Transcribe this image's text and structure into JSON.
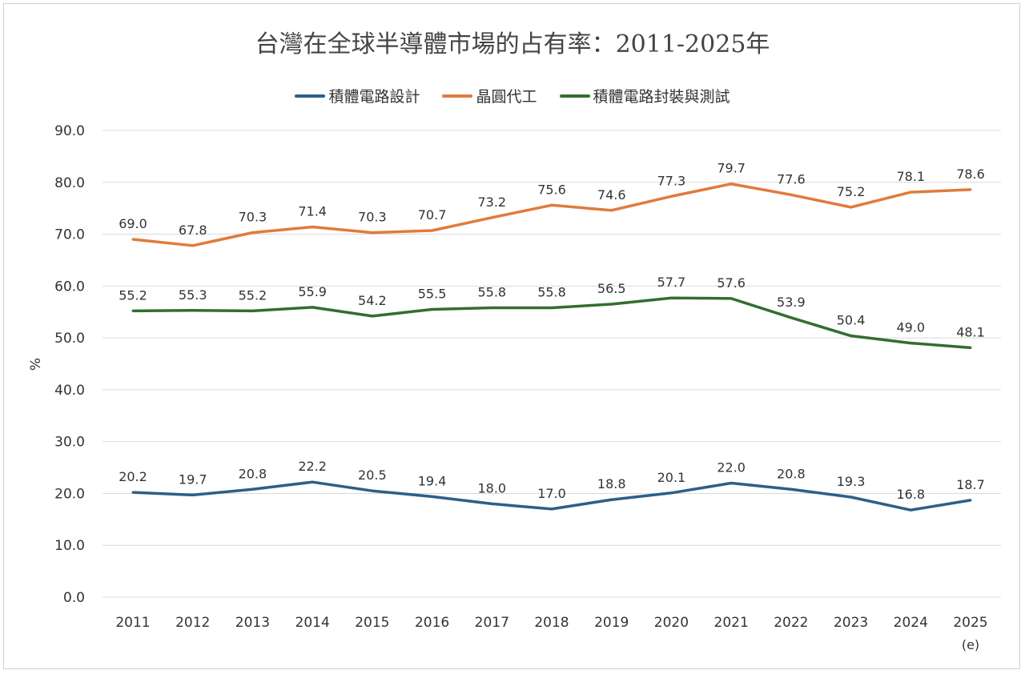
{
  "chart_data": {
    "type": "line",
    "title": "台灣在全球半導體市場的占有率：2011-2025年",
    "ylabel": "%",
    "xlabel": "",
    "categories": [
      "2011",
      "2012",
      "2013",
      "2014",
      "2015",
      "2016",
      "2017",
      "2018",
      "2019",
      "2020",
      "2021",
      "2022",
      "2023",
      "2024",
      "2025"
    ],
    "category_note": {
      "2025": "(e)"
    },
    "ylim": [
      0,
      90
    ],
    "yticks": [
      "0.0",
      "10.0",
      "20.0",
      "30.0",
      "40.0",
      "50.0",
      "60.0",
      "70.0",
      "80.0",
      "90.0"
    ],
    "grid": true,
    "legend_position": "top",
    "series": [
      {
        "name": "積體電路設計",
        "color": "#2e5f87",
        "values": [
          20.2,
          19.7,
          20.8,
          22.2,
          20.5,
          19.4,
          18.0,
          17.0,
          18.8,
          20.1,
          22.0,
          20.8,
          19.3,
          16.8,
          18.7
        ]
      },
      {
        "name": "晶圓代工",
        "color": "#e07b3c",
        "values": [
          69.0,
          67.8,
          70.3,
          71.4,
          70.3,
          70.7,
          73.2,
          75.6,
          74.6,
          77.3,
          79.7,
          77.6,
          75.2,
          78.1,
          78.6
        ]
      },
      {
        "name": "積體電路封裝與測試",
        "color": "#336e2e",
        "values": [
          55.2,
          55.3,
          55.2,
          55.9,
          54.2,
          55.5,
          55.8,
          55.8,
          56.5,
          57.7,
          57.6,
          53.9,
          50.4,
          49.0,
          48.1
        ]
      }
    ]
  }
}
